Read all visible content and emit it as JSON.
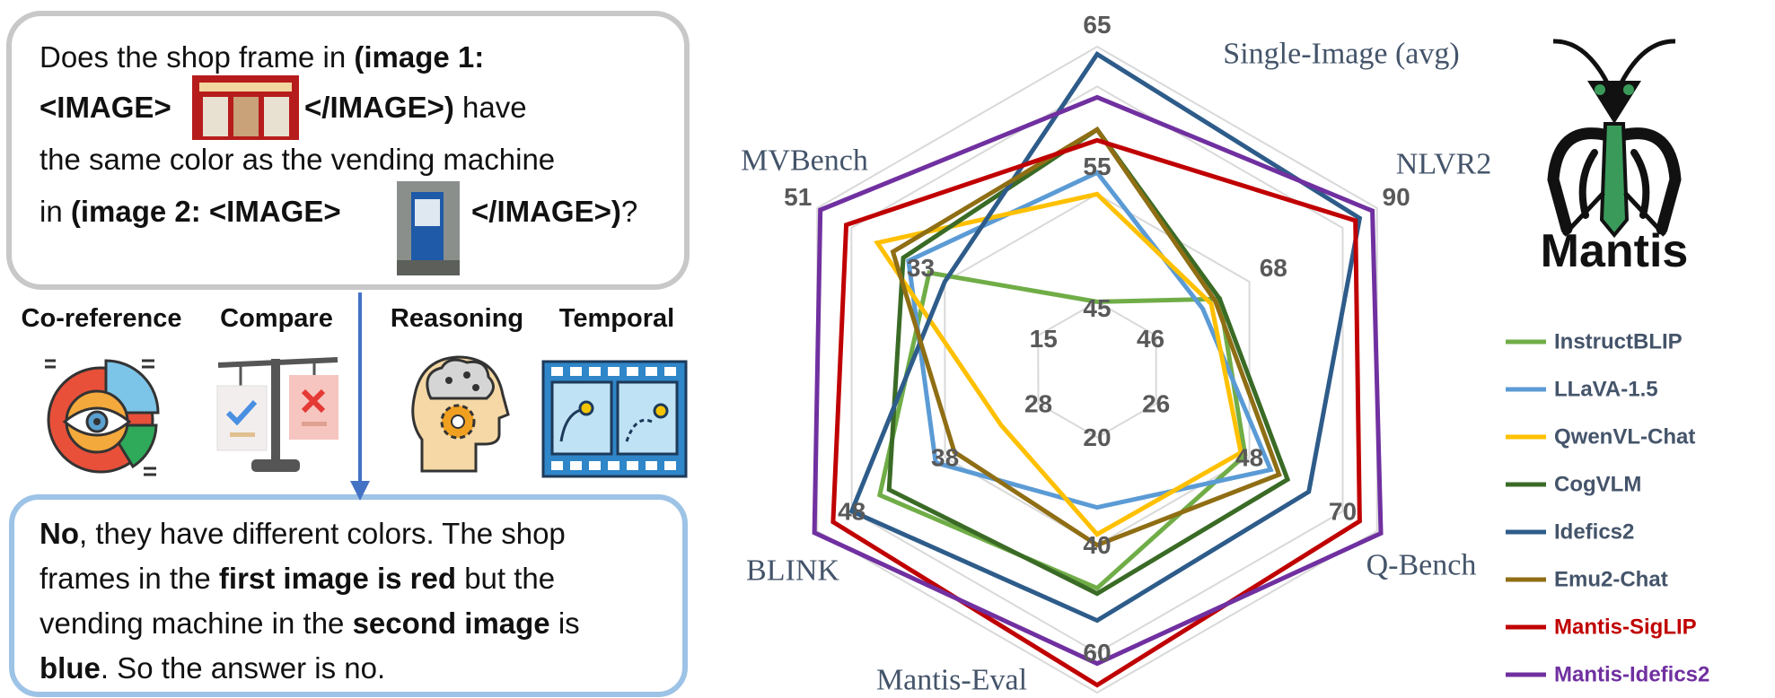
{
  "question": {
    "lines": [
      [
        "Does the shop frame in",
        "(image 1:"
      ],
      [
        "<IMAGE>",
        "</IMAGE>)",
        "have"
      ],
      [
        "the same color as the vending machine"
      ],
      [
        "in",
        "(image 2: <IMAGE>",
        "</IMAGE>)",
        "?"
      ]
    ]
  },
  "skills": [
    "Co-reference",
    "Compare",
    "Reasoning",
    "Temporal"
  ],
  "answer": {
    "lines": [
      [
        "No",
        ", they have different colors. The shop"
      ],
      [
        "frames in the",
        "first image is red",
        "but the"
      ],
      [
        "vending machine in the",
        "second image",
        "is"
      ],
      [
        "blue",
        ". So the answer is no."
      ]
    ]
  },
  "logo": {
    "text": "Mantis"
  },
  "chart_data": {
    "type": "radar",
    "axes": [
      {
        "name": "Single-Image (avg)",
        "lim": [
          38.7,
          68.7
        ],
        "ticks": [
          45,
          55,
          65
        ]
      },
      {
        "name": "NLVR2",
        "lim": [
          32.1,
          98.1
        ],
        "ticks": [
          46,
          68,
          90
        ]
      },
      {
        "name": "Q-Bench",
        "lim": [
          12.1,
          78.1
        ],
        "ticks": [
          26,
          48,
          70
        ]
      },
      {
        "name": "Mantis-Eval",
        "lim": [
          7.4,
          67.4
        ],
        "ticks": [
          20,
          40,
          60
        ]
      },
      {
        "name": "BLINK",
        "lim": [
          21.7,
          51.7
        ],
        "ticks": [
          28,
          38,
          48
        ]
      },
      {
        "name": "MVBench",
        "lim": [
          3.6,
          57.6
        ],
        "ticks": [
          15,
          33,
          51
        ]
      }
    ],
    "series": [
      {
        "name": "InstructBLIP",
        "color": "#70ad47",
        "label_color": "#44546a",
        "values": [
          45,
          61,
          47,
          48,
          45,
          36
        ]
      },
      {
        "name": "LLaVA-1.5",
        "color": "#5b9bd5",
        "label_color": "#44546a",
        "values": [
          57,
          57,
          53,
          33,
          39,
          40
        ]
      },
      {
        "name": "QwenVL-Chat",
        "color": "#ffc000",
        "label_color": "#44546a",
        "values": [
          55,
          59,
          46,
          38,
          32,
          46
        ]
      },
      {
        "name": "CogVLM",
        "color": "#3a6b26",
        "label_color": "#44546a",
        "values": [
          61,
          61,
          57,
          49,
          44,
          41
        ]
      },
      {
        "name": "Idefics2",
        "color": "#2e5c8a",
        "label_color": "#44546a",
        "values": [
          68,
          94,
          62,
          54,
          48,
          33
        ]
      },
      {
        "name": "Emu2-Chat",
        "color": "#8f6e14",
        "label_color": "#44546a",
        "values": [
          61,
          60,
          55,
          40,
          37,
          43
        ]
      },
      {
        "name": "Mantis-SigLIP",
        "color": "#c00000",
        "label_color": "#c00000",
        "values": [
          60,
          93,
          74,
          66,
          50,
          52
        ]
      },
      {
        "name": "Mantis-Idefics2",
        "color": "#7030a0",
        "label_color": "#7030a0",
        "values": [
          64,
          97,
          79,
          62,
          52,
          57
        ]
      }
    ]
  }
}
